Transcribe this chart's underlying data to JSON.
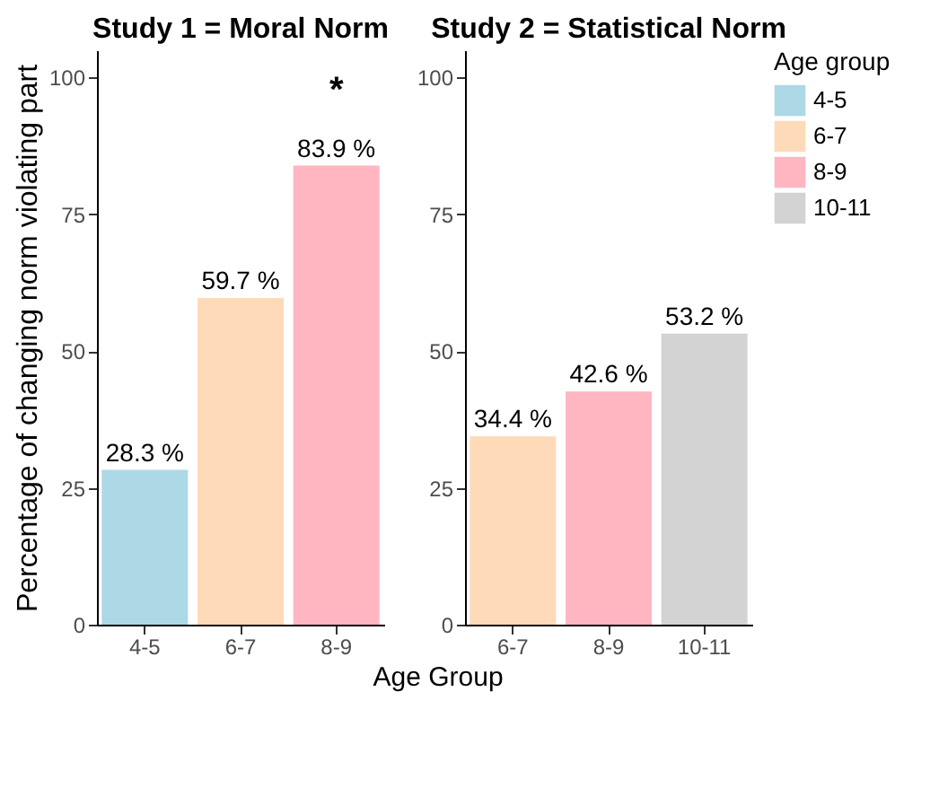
{
  "chart_data": [
    {
      "type": "bar",
      "title": "Study 1 = Moral Norm",
      "ylabel": "Percentage of changing norm violating part",
      "xlabel": "Age Group",
      "categories": [
        "4-5",
        "6-7",
        "8-9"
      ],
      "series": [
        {
          "name": "4-5",
          "color": "#add8e6",
          "values": [
            28.3,
            null,
            null
          ]
        },
        {
          "name": "6-7",
          "color": "#ffdab9",
          "values": [
            null,
            59.7,
            null
          ]
        },
        {
          "name": "8-9",
          "color": "#ffb6c1",
          "values": [
            null,
            null,
            83.9
          ]
        }
      ],
      "value_labels": [
        "28.3 %",
        "59.7 %",
        "83.9 %"
      ],
      "ylim": [
        0,
        105
      ],
      "yticks": [
        0,
        25,
        50,
        75,
        100
      ],
      "legend": "right",
      "annotations": [
        "*"
      ]
    },
    {
      "type": "bar",
      "title": "Study 2 = Statistical Norm",
      "categories": [
        "6-7",
        "8-9",
        "10-11"
      ],
      "series": [
        {
          "name": "6-7",
          "color": "#ffdab9",
          "values": [
            34.4,
            null,
            null
          ]
        },
        {
          "name": "8-9",
          "color": "#ffb6c1",
          "values": [
            null,
            42.6,
            null
          ]
        },
        {
          "name": "10-11",
          "color": "#d3d3d3",
          "values": [
            null,
            null,
            53.2
          ]
        }
      ],
      "value_labels": [
        "34.4 %",
        "42.6 %",
        "53.2 %"
      ],
      "ylim": [
        0,
        105
      ],
      "yticks": [
        0,
        25,
        50,
        75,
        100
      ],
      "legend": "right",
      "legend_title": "Age group"
    }
  ]
}
